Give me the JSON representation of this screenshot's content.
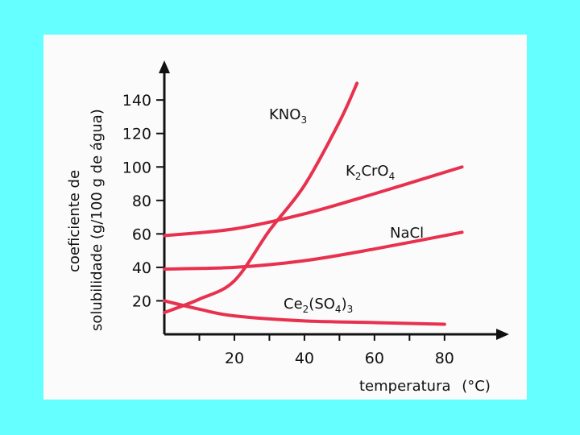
{
  "page": {
    "background": "#66ffff",
    "card_background": "#fbfbfb"
  },
  "chart_data": {
    "type": "line",
    "xlabel": "temperatura",
    "xunit": "(°C)",
    "ylabel_line1": "coeficiente de",
    "ylabel_line2": "solubilidade (g/100 g de água)",
    "xlim": [
      0,
      92
    ],
    "ylim": [
      0,
      155
    ],
    "x_ticks": [
      20,
      40,
      60,
      80
    ],
    "y_ticks": [
      20,
      40,
      60,
      80,
      100,
      120,
      140
    ],
    "grid": false,
    "legend": "inline labels",
    "line_color": "#e8314f",
    "series": [
      {
        "name": "KNO",
        "label_sub": "3",
        "label_tail": "",
        "x": [
          0,
          10,
          20,
          30,
          40,
          50,
          55
        ],
        "y": [
          13,
          21,
          32,
          62,
          89,
          127,
          150
        ]
      },
      {
        "name": "K",
        "label_sub": "2",
        "label_tail": "CrO",
        "label_sub2": "4",
        "x": [
          0,
          20,
          40,
          60,
          85
        ],
        "y": [
          59,
          63,
          72,
          84,
          100
        ]
      },
      {
        "name": "NaCl",
        "label_sub": "",
        "label_tail": "",
        "x": [
          0,
          20,
          40,
          60,
          85
        ],
        "y": [
          39,
          40,
          44,
          51,
          61
        ]
      },
      {
        "name": "Ce",
        "label_sub": "2",
        "label_tail": "(SO",
        "label_sub2": "4",
        "label_tail2": ")",
        "label_sub3": "3",
        "x": [
          0,
          10,
          20,
          40,
          60,
          80
        ],
        "y": [
          20,
          15,
          11,
          8,
          7,
          6
        ]
      }
    ]
  }
}
